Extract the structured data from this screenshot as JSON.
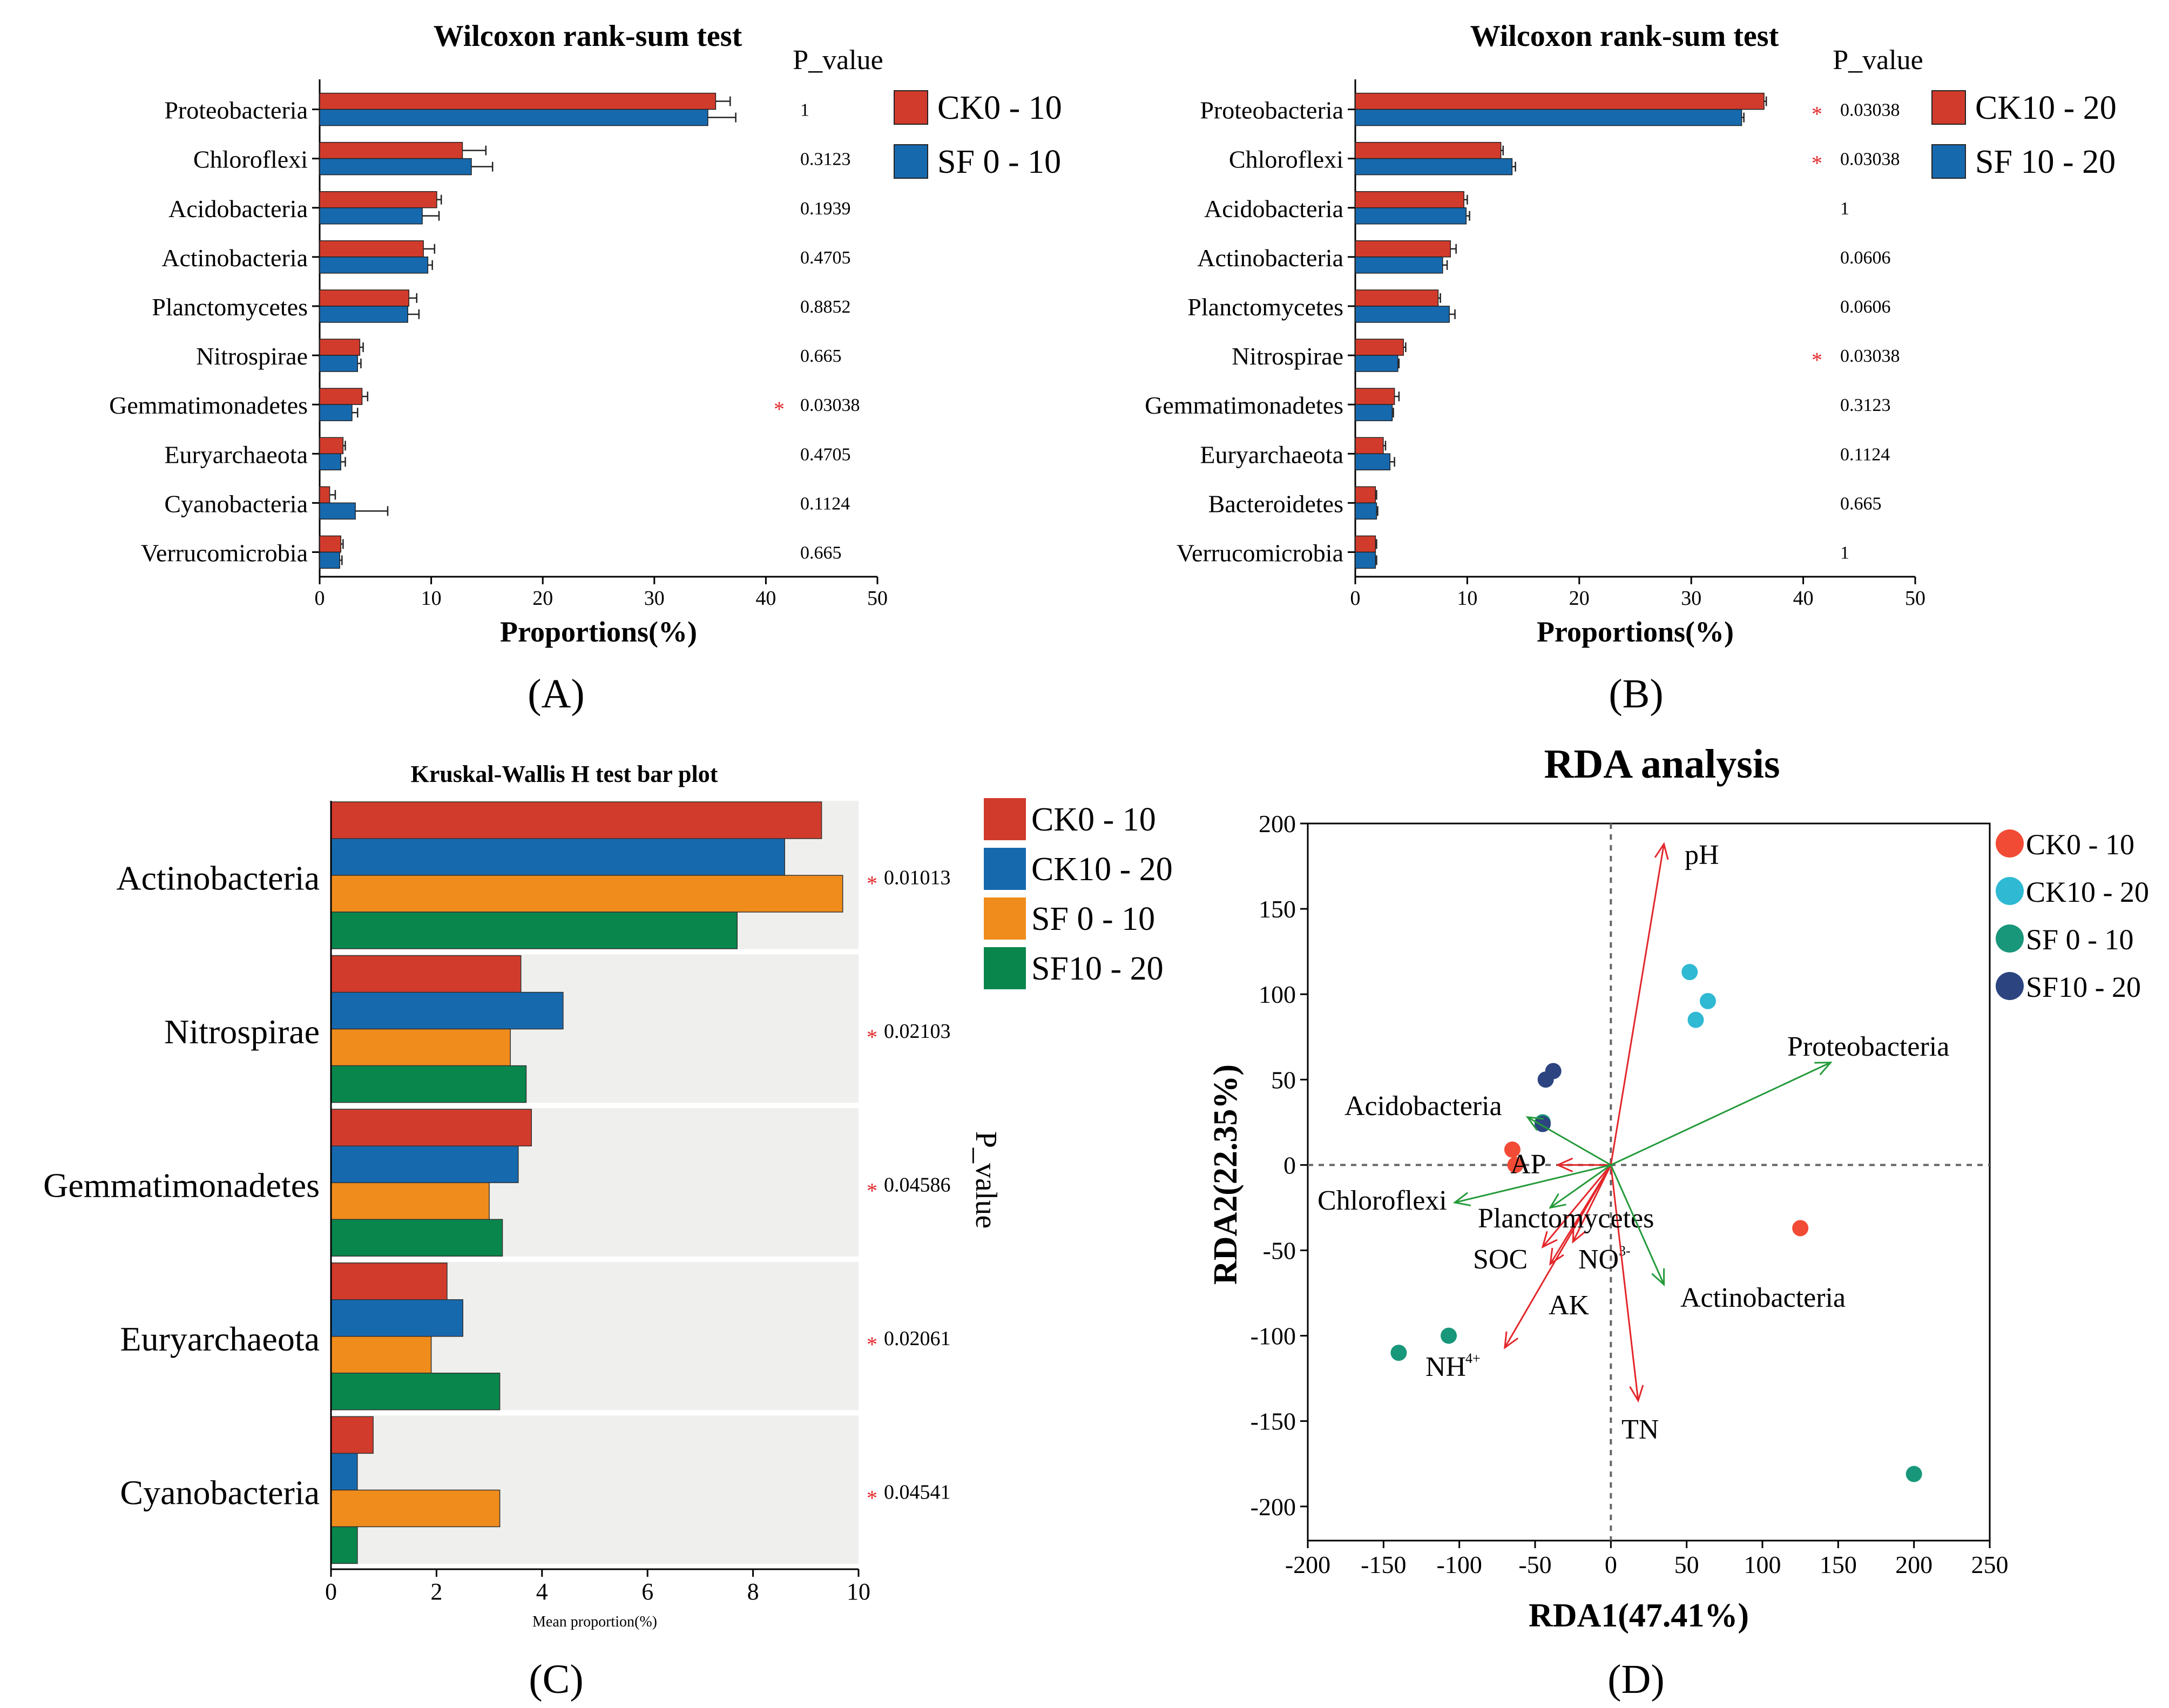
{
  "colors": {
    "red": "#d13b2c",
    "blue": "#1769ae",
    "orange": "#ef8c1c",
    "green": "#08864c",
    "panel_bg": "#efefed",
    "pt_ck0": "#f24b35",
    "pt_ck10": "#2fb9d3",
    "pt_sf0": "#18977a",
    "pt_sf10": "#2c4480",
    "arrow_red": "#e3262a",
    "arrow_green": "#249a3a",
    "star": "#e3262a"
  },
  "chart_data": [
    {
      "id": "A",
      "type": "bar",
      "orientation": "horizontal",
      "title": "Wilcoxon rank-sum test",
      "xlabel": "Proportions(%)",
      "panel_label": "(A)",
      "pvalue_header": "P_value",
      "xlim": [
        0,
        50
      ],
      "xticks": [
        "0",
        "10",
        "20",
        "30",
        "40",
        "50"
      ],
      "categories": [
        "Proteobacteria",
        "Chloroflexi",
        "Acidobacteria",
        "Actinobacteria",
        "Planctomycetes",
        "Nitrospirae",
        "Gemmatimonadetes",
        "Euryarchaeota",
        "Cyanobacteria",
        "Verrucomicrobia"
      ],
      "series": [
        {
          "name": "CK0 - 10",
          "color_key": "red",
          "values": [
            35.5,
            12.8,
            10.5,
            9.3,
            8.0,
            3.6,
            3.8,
            2.1,
            0.9,
            1.9
          ],
          "errors": [
            1.3,
            2.1,
            0.4,
            1.0,
            0.7,
            0.3,
            0.5,
            0.2,
            0.5,
            0.2
          ]
        },
        {
          "name": "SF 0 - 10",
          "color_key": "blue",
          "values": [
            34.8,
            13.6,
            9.2,
            9.7,
            7.9,
            3.4,
            2.9,
            1.9,
            3.2,
            1.8
          ],
          "errors": [
            2.5,
            1.9,
            1.5,
            0.4,
            1.0,
            0.3,
            0.5,
            0.4,
            2.9,
            0.2
          ]
        }
      ],
      "pvalues": [
        "1",
        "0.3123",
        "0.1939",
        "0.4705",
        "0.8852",
        "0.665",
        "0.03038",
        "0.4705",
        "0.1124",
        "0.665"
      ],
      "significant": [
        false,
        false,
        false,
        false,
        false,
        false,
        true,
        false,
        false,
        false
      ]
    },
    {
      "id": "B",
      "type": "bar",
      "orientation": "horizontal",
      "title": "Wilcoxon rank-sum test",
      "xlabel": "Proportions(%)",
      "panel_label": "(B)",
      "pvalue_header": "P_value",
      "xlim": [
        0,
        50
      ],
      "xticks": [
        "0",
        "10",
        "20",
        "30",
        "40",
        "50"
      ],
      "categories": [
        "Proteobacteria",
        "Chloroflexi",
        "Acidobacteria",
        "Actinobacteria",
        "Planctomycetes",
        "Nitrospirae",
        "Gemmatimonadetes",
        "Euryarchaeota",
        "Bacteroidetes",
        "Verrucomicrobia"
      ],
      "series": [
        {
          "name": "CK10 - 20",
          "color_key": "red",
          "values": [
            36.5,
            13.0,
            9.7,
            8.5,
            7.4,
            4.3,
            3.5,
            2.5,
            1.8,
            1.8
          ],
          "errors": [
            0.2,
            0.2,
            0.3,
            0.5,
            0.2,
            0.2,
            0.4,
            0.2,
            0.1,
            0.1
          ]
        },
        {
          "name": "SF 10 - 20",
          "color_key": "blue",
          "values": [
            34.5,
            14.0,
            9.9,
            7.8,
            8.4,
            3.8,
            3.3,
            3.1,
            1.9,
            1.8
          ],
          "errors": [
            0.2,
            0.3,
            0.3,
            0.4,
            0.5,
            0.1,
            0.1,
            0.4,
            0.1,
            0.1
          ]
        }
      ],
      "pvalues": [
        "0.03038",
        "0.03038",
        "1",
        "0.0606",
        "0.0606",
        "0.03038",
        "0.3123",
        "0.1124",
        "0.665",
        "1"
      ],
      "significant": [
        true,
        true,
        false,
        false,
        false,
        true,
        false,
        false,
        false,
        false
      ]
    },
    {
      "id": "C",
      "type": "bar",
      "orientation": "horizontal",
      "title": "Kruskal-Wallis H test bar plot",
      "xlabel": "Mean proportion(%)",
      "panel_label": "(C)",
      "pvalue_header": "P_value",
      "xlim": [
        0,
        10
      ],
      "xticks": [
        "0",
        "2",
        "4",
        "6",
        "8",
        "10"
      ],
      "categories": [
        "Actinobacteria",
        "Nitrospirae",
        "Gemmatimonadetes",
        "Euryarchaeota",
        "Cyanobacteria"
      ],
      "series": [
        {
          "name": "CK0 - 10",
          "color_key": "red",
          "values": [
            9.3,
            3.6,
            3.8,
            2.2,
            0.8
          ]
        },
        {
          "name": "CK10 - 20",
          "color_key": "blue",
          "values": [
            8.6,
            4.4,
            3.55,
            2.5,
            0.5
          ]
        },
        {
          "name": "SF 0 - 10",
          "color_key": "orange",
          "values": [
            9.7,
            3.4,
            3.0,
            1.9,
            3.2
          ]
        },
        {
          "name": "SF10 - 20",
          "color_key": "green",
          "values": [
            7.7,
            3.7,
            3.25,
            3.2,
            0.5
          ]
        }
      ],
      "pvalues": [
        "0.01013",
        "0.02103",
        "0.04586",
        "0.02061",
        "0.04541"
      ],
      "significant": [
        true,
        true,
        true,
        true,
        true
      ]
    },
    {
      "id": "D",
      "type": "scatter",
      "title": "RDA analysis",
      "xlabel": "RDA1(47.41%)",
      "ylabel": "RDA2(22.35%)",
      "panel_label": "(D)",
      "xlim": [
        -200,
        250
      ],
      "ylim": [
        -220,
        200
      ],
      "xticks": [
        -200,
        -150,
        -100,
        -50,
        0,
        50,
        100,
        150,
        200,
        250
      ],
      "yticks": [
        200,
        150,
        100,
        50,
        0,
        -50,
        -100,
        -150,
        -200
      ],
      "groups": [
        {
          "name": "CK0 - 10",
          "color_key": "pt_ck0",
          "points": [
            [
              -65,
              9
            ],
            [
              -63,
              0
            ],
            [
              125,
              -37
            ]
          ]
        },
        {
          "name": "CK10 - 20",
          "color_key": "pt_ck10",
          "points": [
            [
              52,
              113
            ],
            [
              64,
              96
            ],
            [
              56,
              85
            ]
          ]
        },
        {
          "name": "SF 0 - 10",
          "color_key": "pt_sf0",
          "points": [
            [
              -140,
              -110
            ],
            [
              -107,
              -100
            ],
            [
              200,
              -181
            ],
            [
              -45,
              25
            ]
          ]
        },
        {
          "name": "SF10 - 20",
          "color_key": "pt_sf10",
          "points": [
            [
              -38,
              55
            ],
            [
              -43,
              50
            ],
            [
              -45,
              24
            ]
          ]
        }
      ],
      "env_arrows": [
        {
          "label": "pH",
          "x": 35,
          "y": 188
        },
        {
          "label": "AP",
          "x": -35,
          "y": 0
        },
        {
          "label": "SOC",
          "x": -45,
          "y": -48
        },
        {
          "label": "NO",
          "sup": "3-",
          "x": -25,
          "y": -45
        },
        {
          "label": "AK",
          "x": -40,
          "y": -58
        },
        {
          "label": "NH",
          "sup": "4+",
          "x": -70,
          "y": -107
        },
        {
          "label": "TN",
          "x": 18,
          "y": -138
        }
      ],
      "species_arrows": [
        {
          "label": "Proteobacteria",
          "x": 145,
          "y": 60
        },
        {
          "label": "Acidobacteria",
          "x": -55,
          "y": 28
        },
        {
          "label": "Chloroflexi",
          "x": -103,
          "y": -22
        },
        {
          "label": "Planctomycetes",
          "x": -40,
          "y": -25
        },
        {
          "label": "Actinobacteria",
          "x": 35,
          "y": -70
        }
      ]
    }
  ]
}
